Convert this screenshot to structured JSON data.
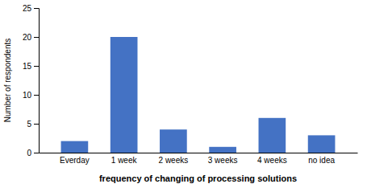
{
  "chart_data": {
    "type": "bar",
    "categories": [
      "Everday",
      "1 week",
      "2 weeks",
      "3 weeks",
      "4 weeks",
      "no idea"
    ],
    "values": [
      2,
      20,
      4,
      1,
      6,
      3
    ],
    "color": "#4472c4",
    "xlabel": "frequency of changing of processing solutions",
    "ylabel": "Number of respondents",
    "ylim": [
      0,
      25
    ],
    "yticks": [
      0,
      5,
      10,
      15,
      20,
      25
    ],
    "grid": false
  }
}
